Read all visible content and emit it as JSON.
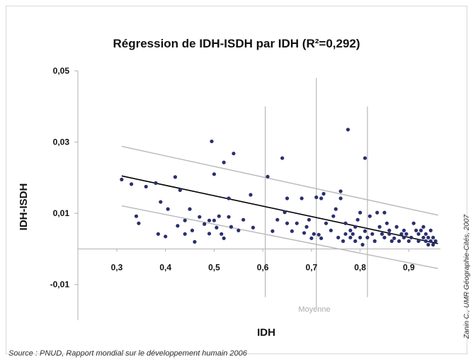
{
  "chart_data": {
    "type": "scatter",
    "title": "Régression de IDH-ISDH par IDH (R²=0,292)",
    "xlabel": "IDH",
    "ylabel": "IDH-ISDH",
    "x_ticks": [
      "0,3",
      "0,4",
      "0,5",
      "0,6",
      "0,7",
      "0,8",
      "0,9"
    ],
    "x_tick_values": [
      0.3,
      0.4,
      0.5,
      0.6,
      0.7,
      0.8,
      0.9
    ],
    "y_ticks": [
      "0,05",
      "0,03",
      "0,01",
      "-0,01"
    ],
    "y_tick_values": [
      0.05,
      0.03,
      0.01,
      -0.01
    ],
    "xlim": [
      0.22,
      0.965
    ],
    "ylim": [
      -0.02,
      0.05
    ],
    "regression": {
      "x": [
        0.31,
        0.96
      ],
      "y": [
        0.0205,
        0.0015
      ]
    },
    "confidence_upper": {
      "x": [
        0.31,
        0.96
      ],
      "y": [
        0.0288,
        0.0095
      ]
    },
    "confidence_lower": {
      "x": [
        0.31,
        0.96
      ],
      "y": [
        0.0121,
        -0.0055
      ]
    },
    "reference_lines": [
      {
        "x": 0.605,
        "y_range": [
          -0.0135,
          0.04
        ]
      },
      {
        "x": 0.71,
        "y_range": [
          -0.0165,
          0.048
        ]
      },
      {
        "x": 0.815,
        "y_range": [
          -0.0135,
          0.04
        ]
      }
    ],
    "reference_label": "Moyenne",
    "points": {
      "x": [
        0.31,
        0.33,
        0.34,
        0.345,
        0.36,
        0.38,
        0.385,
        0.39,
        0.4,
        0.405,
        0.42,
        0.425,
        0.43,
        0.44,
        0.44,
        0.45,
        0.455,
        0.46,
        0.47,
        0.48,
        0.49,
        0.49,
        0.495,
        0.5,
        0.5,
        0.505,
        0.51,
        0.515,
        0.52,
        0.52,
        0.53,
        0.53,
        0.535,
        0.54,
        0.55,
        0.56,
        0.575,
        0.58,
        0.61,
        0.62,
        0.63,
        0.64,
        0.645,
        0.65,
        0.65,
        0.66,
        0.67,
        0.68,
        0.685,
        0.69,
        0.695,
        0.7,
        0.705,
        0.71,
        0.715,
        0.72,
        0.72,
        0.725,
        0.73,
        0.74,
        0.745,
        0.75,
        0.755,
        0.76,
        0.76,
        0.765,
        0.77,
        0.77,
        0.775,
        0.78,
        0.78,
        0.785,
        0.79,
        0.79,
        0.795,
        0.8,
        0.8,
        0.805,
        0.81,
        0.81,
        0.815,
        0.82,
        0.825,
        0.83,
        0.835,
        0.84,
        0.845,
        0.85,
        0.85,
        0.855,
        0.86,
        0.86,
        0.865,
        0.87,
        0.875,
        0.88,
        0.885,
        0.89,
        0.89,
        0.895,
        0.9,
        0.905,
        0.91,
        0.915,
        0.92,
        0.92,
        0.925,
        0.93,
        0.93,
        0.935,
        0.935,
        0.94,
        0.94,
        0.945,
        0.945,
        0.95,
        0.95,
        0.955
      ],
      "y": [
        0.0195,
        0.0182,
        0.0092,
        0.0072,
        0.0175,
        0.0185,
        0.0042,
        0.0132,
        0.0035,
        0.0112,
        0.0202,
        0.0065,
        0.0165,
        0.0042,
        0.008,
        0.0112,
        0.0052,
        0.002,
        0.009,
        0.007,
        0.008,
        0.0043,
        0.0302,
        0.021,
        0.008,
        0.006,
        0.0092,
        0.0042,
        0.003,
        0.0243,
        0.009,
        0.0142,
        0.0062,
        0.0268,
        0.0052,
        0.0082,
        0.0152,
        0.006,
        0.0203,
        0.005,
        0.0082,
        0.0255,
        0.0103,
        0.0072,
        0.0142,
        0.005,
        0.0072,
        0.0142,
        0.0045,
        0.0062,
        0.0082,
        0.003,
        0.0042,
        0.0145,
        0.004,
        0.0142,
        0.003,
        0.0155,
        0.0072,
        0.0052,
        0.0092,
        0.0112,
        0.0032,
        0.0142,
        0.0162,
        0.0022,
        0.0072,
        0.0042,
        0.0335,
        0.0032,
        0.0052,
        0.0042,
        0.0022,
        0.0062,
        0.0082,
        0.0032,
        0.0102,
        0.0012,
        0.0255,
        0.005,
        0.0032,
        0.0092,
        0.0042,
        0.0022,
        0.0102,
        0.0062,
        0.0042,
        0.0032,
        0.0102,
        0.0072,
        0.0042,
        0.0052,
        0.0022,
        0.003,
        0.0062,
        0.0022,
        0.0042,
        0.0032,
        0.0052,
        0.0042,
        0.0022,
        0.0032,
        0.0072,
        0.0052,
        0.0042,
        0.0022,
        0.0052,
        0.0032,
        0.0062,
        0.0042,
        0.0022,
        0.0012,
        0.0032,
        0.0052,
        0.0022,
        0.0032,
        0.0012,
        0.0022
      ]
    },
    "grid": false,
    "legend": "none"
  },
  "source_note": "Source : PNUD, Rapport mondial sur le développement humain 2006",
  "credit": "Zanin C., UMR Géographie-Cités, 2007",
  "colors": {
    "points": "#2a2f6e",
    "regression": "#000000",
    "confidence": "#b8b8b8",
    "reference": "#b8b8b8",
    "axis": "#b0b0b0",
    "text": "#111111"
  }
}
